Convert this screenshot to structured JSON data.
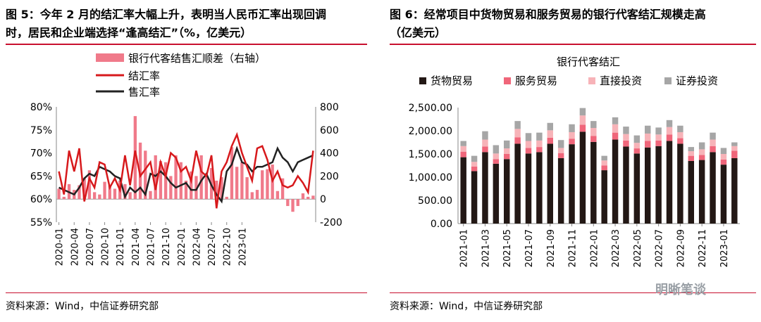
{
  "left_title": "图 5：今年 2 月的结汇率大幅上升，表明当人民币汇率出现回调时，居民和企业端选择“逢高结汇”（%，亿美元）",
  "left_title_line1": "图 5：今年 2 月的结汇率大幅上升，表明当人民币汇率出现回调",
  "left_title_line2": "时，居民和企业端选择“逢高结汇”（%，亿美元）",
  "right_title_line1": "图 6：经常项目中货物贸易和服务贸易的银行代客结汇规模走高",
  "right_title_line2": "（亿美元）",
  "left_source": "资料来源：Wind，中信证券研究部",
  "right_source": "资料来源：Wind，中信证券研究部",
  "watermark": "明晰笔谈",
  "colors": {
    "red": "#d7191c",
    "black": "#222222",
    "pink": "#f07a8a",
    "rule": "#c8102e",
    "goods": "#231815",
    "services": "#f0667a",
    "direct": "#f7b3b8",
    "securities": "#a6a6a6"
  },
  "chart_data": [
    {
      "type": "bar+line",
      "legend": [
        "银行代客结售汇顺差（右轴）",
        "结汇率",
        "售汇率"
      ],
      "y_left_ticks": [
        "80%",
        "75%",
        "70%",
        "65%",
        "60%",
        "55%"
      ],
      "y_right_ticks": [
        "800",
        "600",
        "400",
        "200",
        "0",
        "-200"
      ],
      "x_ticks": [
        "2020-01",
        "2020-04",
        "2020-07",
        "2020-10",
        "2021-01",
        "2021-04",
        "2021-07",
        "2021-10",
        "2022-01",
        "2022-04",
        "2022-07",
        "2022-10",
        "2023-01"
      ],
      "ylim_left": [
        55,
        80
      ],
      "ylim_right": [
        -200,
        800
      ],
      "surplus": [
        90,
        20,
        130,
        80,
        120,
        180,
        250,
        60,
        40,
        150,
        120,
        90,
        160,
        130,
        60,
        720,
        490,
        420,
        70,
        380,
        330,
        320,
        200,
        380,
        320,
        160,
        240,
        200,
        380,
        220,
        270,
        160,
        190,
        20,
        450,
        280,
        320,
        190,
        60,
        80,
        250,
        260,
        300,
        70,
        180,
        -60,
        -110,
        -60,
        50,
        20,
        30
      ],
      "settle_rate": [
        66.0,
        61.0,
        70.5,
        66.0,
        71.0,
        59.5,
        64.5,
        62.5,
        68.0,
        67.5,
        62.5,
        64.5,
        62.0,
        69.5,
        63.0,
        70.5,
        65.0,
        66.5,
        68.0,
        62.0,
        68.0,
        65.0,
        70.0,
        69.0,
        66.0,
        67.0,
        64.0,
        70.5,
        66.0,
        65.0,
        69.5,
        58.0,
        66.0,
        68.0,
        71.5,
        74.0,
        70.0,
        67.0,
        64.0,
        71.0,
        71.5,
        68.5,
        64.0,
        66.0,
        63.0,
        62.5,
        63.0,
        65.0,
        63.5,
        61.5,
        70.5
      ],
      "sale_rate": [
        62.5,
        62.0,
        61.5,
        61.0,
        62.5,
        64.5,
        65.5,
        65.0,
        67.0,
        66.5,
        66.0,
        65.0,
        64.5,
        60.5,
        62.5,
        61.5,
        62.5,
        61.0,
        65.5,
        65.0,
        66.0,
        65.0,
        63.5,
        62.5,
        63.0,
        63.5,
        62.0,
        62.0,
        64.0,
        65.5,
        63.0,
        61.0,
        59.5,
        66.0,
        67.5,
        71.0,
        68.0,
        67.5,
        66.0,
        67.0,
        67.0,
        67.5,
        68.0,
        71.0,
        69.0,
        68.0,
        66.0,
        68.0,
        68.5,
        69.0,
        69.5
      ]
    },
    {
      "type": "stacked_bar",
      "title": "银行代客结汇",
      "legend": [
        "货物贸易",
        "服务贸易",
        "直接投资",
        "证券投资"
      ],
      "y_ticks": [
        "2,500.00",
        "2,000.00",
        "1,500.00",
        "1,000.00",
        "500.00",
        "0.00"
      ],
      "ylim": [
        0,
        2500
      ],
      "x_ticks": [
        "2021-01",
        "2021-03",
        "2021-05",
        "2021-07",
        "2021-09",
        "2021-11",
        "2022-01",
        "2022-03",
        "2022-05",
        "2022-07",
        "2022-09",
        "2022-11",
        "2023-01"
      ],
      "goods": [
        1430,
        1130,
        1540,
        1290,
        1390,
        1720,
        1510,
        1540,
        1720,
        1410,
        1710,
        1980,
        1760,
        1150,
        1810,
        1660,
        1510,
        1640,
        1670,
        1780,
        1720,
        1350,
        1370,
        1540,
        1270,
        1410
      ],
      "services": [
        120,
        100,
        120,
        100,
        110,
        140,
        120,
        110,
        130,
        110,
        120,
        150,
        130,
        100,
        150,
        130,
        110,
        140,
        120,
        140,
        120,
        110,
        110,
        130,
        110,
        160
      ],
      "direct": [
        120,
        100,
        150,
        120,
        120,
        180,
        150,
        140,
        160,
        110,
        140,
        200,
        170,
        110,
        180,
        140,
        120,
        160,
        130,
        160,
        130,
        100,
        120,
        140,
        120,
        100
      ],
      "securities": [
        110,
        130,
        180,
        180,
        170,
        170,
        170,
        170,
        160,
        170,
        170,
        160,
        150,
        100,
        150,
        160,
        160,
        170,
        150,
        150,
        140,
        90,
        150,
        150,
        130,
        80
      ]
    }
  ]
}
